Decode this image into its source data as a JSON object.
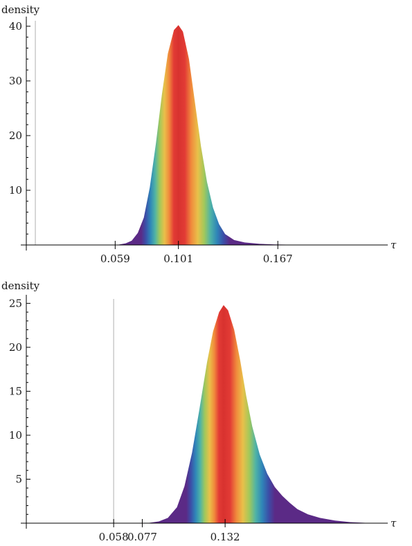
{
  "chart_data": [
    {
      "type": "area",
      "ylabel": "density",
      "xlabel": "τ",
      "xlim": [
        0.0,
        0.24
      ],
      "ylim": [
        0,
        41
      ],
      "y_ticks": [
        "10",
        "20",
        "30",
        "40"
      ],
      "y_tick_values": [
        10,
        20,
        30,
        40
      ],
      "x_ticks": [
        "0.059",
        "0.101",
        "0.167"
      ],
      "x_tick_values": [
        0.059,
        0.101,
        0.167
      ],
      "reference_line_x": 0.006,
      "x": [
        0.06,
        0.066,
        0.07,
        0.074,
        0.078,
        0.082,
        0.086,
        0.09,
        0.094,
        0.098,
        0.101,
        0.104,
        0.108,
        0.112,
        0.116,
        0.12,
        0.124,
        0.128,
        0.132,
        0.138,
        0.145,
        0.155,
        0.165,
        0.18,
        0.2,
        0.215
      ],
      "y": [
        0.0,
        0.3,
        0.8,
        2.2,
        5.0,
        10.5,
        18.5,
        27.5,
        35.0,
        39.3,
        40.2,
        39.0,
        34.0,
        26.0,
        18.0,
        11.5,
        6.8,
        3.8,
        2.0,
        0.9,
        0.45,
        0.2,
        0.1,
        0.04,
        0.01,
        0.0
      ],
      "peak_x": 0.101
    },
    {
      "type": "area",
      "ylabel": "density",
      "xlabel": "τ",
      "xlim": [
        0.0,
        0.24
      ],
      "ylim": [
        0,
        25.5
      ],
      "y_ticks": [
        "5",
        "10",
        "15",
        "20",
        "25"
      ],
      "y_tick_values": [
        5,
        10,
        15,
        20,
        25
      ],
      "x_ticks": [
        "0.058",
        "0.077",
        "0.132"
      ],
      "x_tick_values": [
        0.058,
        0.077,
        0.132
      ],
      "reference_line_x": 0.058,
      "x": [
        0.08,
        0.088,
        0.094,
        0.1,
        0.105,
        0.11,
        0.115,
        0.12,
        0.124,
        0.128,
        0.131,
        0.134,
        0.138,
        0.142,
        0.146,
        0.15,
        0.155,
        0.16,
        0.165,
        0.17,
        0.175,
        0.18,
        0.187,
        0.195,
        0.205,
        0.215,
        0.225,
        0.235
      ],
      "y": [
        0.0,
        0.2,
        0.6,
        1.8,
        4.2,
        8.0,
        13.0,
        18.3,
        21.8,
        24.0,
        24.8,
        24.2,
        22.0,
        18.5,
        14.5,
        11.0,
        7.8,
        5.6,
        4.1,
        3.1,
        2.3,
        1.6,
        1.0,
        0.6,
        0.3,
        0.12,
        0.04,
        0.0
      ],
      "peak_x": 0.131
    }
  ]
}
